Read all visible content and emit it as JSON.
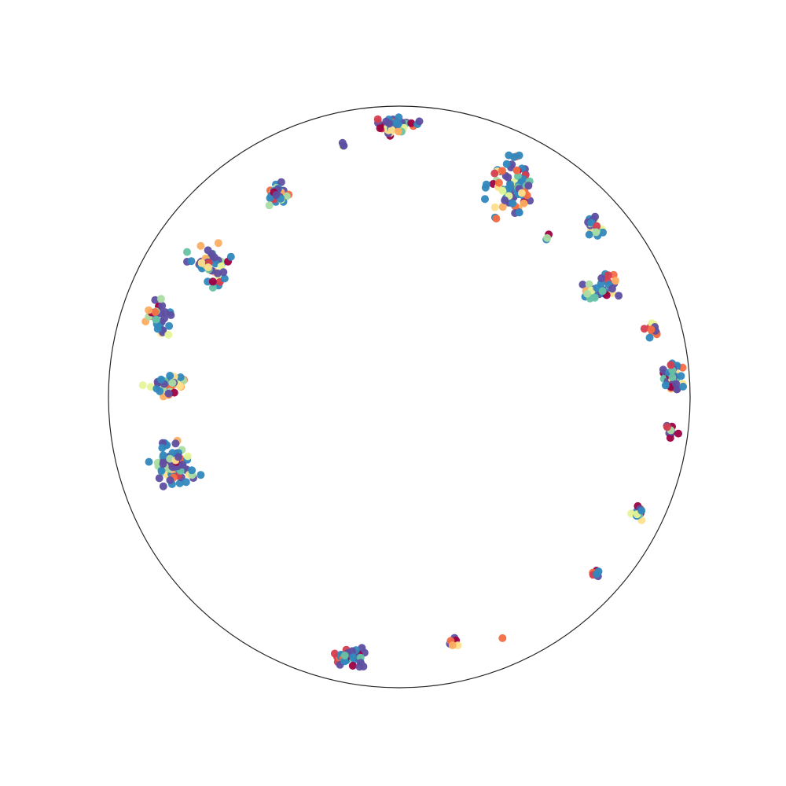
{
  "chart_data": {
    "type": "scatter",
    "coordinate_system": "polar",
    "title": "",
    "axes_visible": false,
    "grid": false,
    "legend": "none",
    "r_range": [
      0,
      1
    ],
    "theta_unit": "degrees",
    "colormap": "Spectral",
    "palette": [
      "#9e0142",
      "#d53e4f",
      "#f46d43",
      "#fdae61",
      "#fee08b",
      "#e6f598",
      "#abdda4",
      "#66c2a5",
      "#3288bd",
      "#5e4fa2"
    ],
    "clusters": [
      {
        "theta_center": 91,
        "r_center": 0.93,
        "theta_spread": 3.0,
        "r_spread": 0.025,
        "count": 45
      },
      {
        "theta_center": 86,
        "r_center": 0.95,
        "theta_spread": 0.5,
        "r_spread": 0.01,
        "count": 2
      },
      {
        "theta_center": 103,
        "r_center": 0.89,
        "theta_spread": 0.8,
        "r_spread": 0.01,
        "count": 4
      },
      {
        "theta_center": 121,
        "r_center": 0.81,
        "theta_spread": 2.0,
        "r_spread": 0.03,
        "count": 30
      },
      {
        "theta_center": 145,
        "r_center": 0.8,
        "theta_spread": 3.5,
        "r_spread": 0.06,
        "count": 45
      },
      {
        "theta_center": 162,
        "r_center": 0.87,
        "theta_spread": 3.0,
        "r_spread": 0.05,
        "count": 30
      },
      {
        "theta_center": 177,
        "r_center": 0.8,
        "theta_spread": 2.5,
        "r_spread": 0.06,
        "count": 35
      },
      {
        "theta_center": 197,
        "r_center": 0.81,
        "theta_spread": 5.0,
        "r_spread": 0.06,
        "count": 70
      },
      {
        "theta_center": 259,
        "r_center": 0.91,
        "theta_spread": 3.0,
        "r_spread": 0.03,
        "count": 40
      },
      {
        "theta_center": 282,
        "r_center": 0.86,
        "theta_spread": 1.0,
        "r_spread": 0.02,
        "count": 6
      },
      {
        "theta_center": 293,
        "r_center": 0.9,
        "theta_spread": 0.5,
        "r_spread": 0.01,
        "count": 1
      },
      {
        "theta_center": 318,
        "r_center": 0.91,
        "theta_spread": 0.8,
        "r_spread": 0.01,
        "count": 8
      },
      {
        "theta_center": 334,
        "r_center": 0.91,
        "theta_spread": 1.2,
        "r_spread": 0.02,
        "count": 14
      },
      {
        "theta_center": 353,
        "r_center": 0.94,
        "theta_spread": 1.5,
        "r_spread": 0.02,
        "count": 10
      },
      {
        "theta_center": 4,
        "r_center": 0.94,
        "theta_spread": 2.5,
        "r_spread": 0.03,
        "count": 40
      },
      {
        "theta_center": 15,
        "r_center": 0.9,
        "theta_spread": 1.5,
        "r_spread": 0.02,
        "count": 14
      },
      {
        "theta_center": 28,
        "r_center": 0.79,
        "theta_spread": 3.0,
        "r_spread": 0.05,
        "count": 35
      },
      {
        "theta_center": 41,
        "r_center": 0.89,
        "theta_spread": 2.0,
        "r_spread": 0.02,
        "count": 20
      },
      {
        "theta_center": 47,
        "r_center": 0.75,
        "theta_spread": 0.8,
        "r_spread": 0.02,
        "count": 3
      },
      {
        "theta_center": 62,
        "r_center": 0.82,
        "theta_spread": 4.0,
        "r_spread": 0.09,
        "count": 80
      }
    ]
  }
}
